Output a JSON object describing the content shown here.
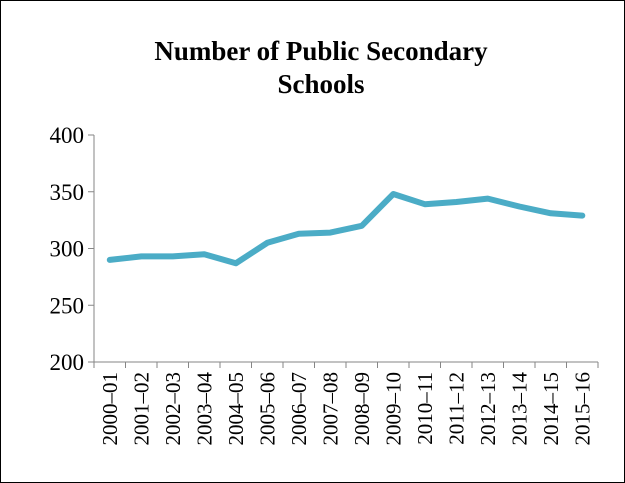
{
  "chart_data": {
    "type": "line",
    "title": "Number of Public Secondary Schools",
    "title_lines": [
      "Number of Public Secondary",
      "Schools"
    ],
    "xlabel": "",
    "ylabel": "",
    "categories": [
      "2000–01",
      "2001–02",
      "2002–03",
      "2003–04",
      "2004–05",
      "2005–06",
      "2006–07",
      "2007–08",
      "2008–09",
      "2009–10",
      "2010–11",
      "2011–12",
      "2012–13",
      "2013–14",
      "2014–15",
      "2015–16"
    ],
    "series": [
      {
        "values": [
          290,
          293,
          293,
          295,
          287,
          305,
          313,
          314,
          320,
          348,
          339,
          341,
          344,
          337,
          331,
          329
        ]
      }
    ],
    "ylim": [
      200,
      400
    ],
    "yticks": [
      "200",
      "250",
      "300",
      "350",
      "400"
    ],
    "grid": false,
    "legend": "none",
    "line_color": "#4bacc6",
    "axis_color": "#868686"
  }
}
